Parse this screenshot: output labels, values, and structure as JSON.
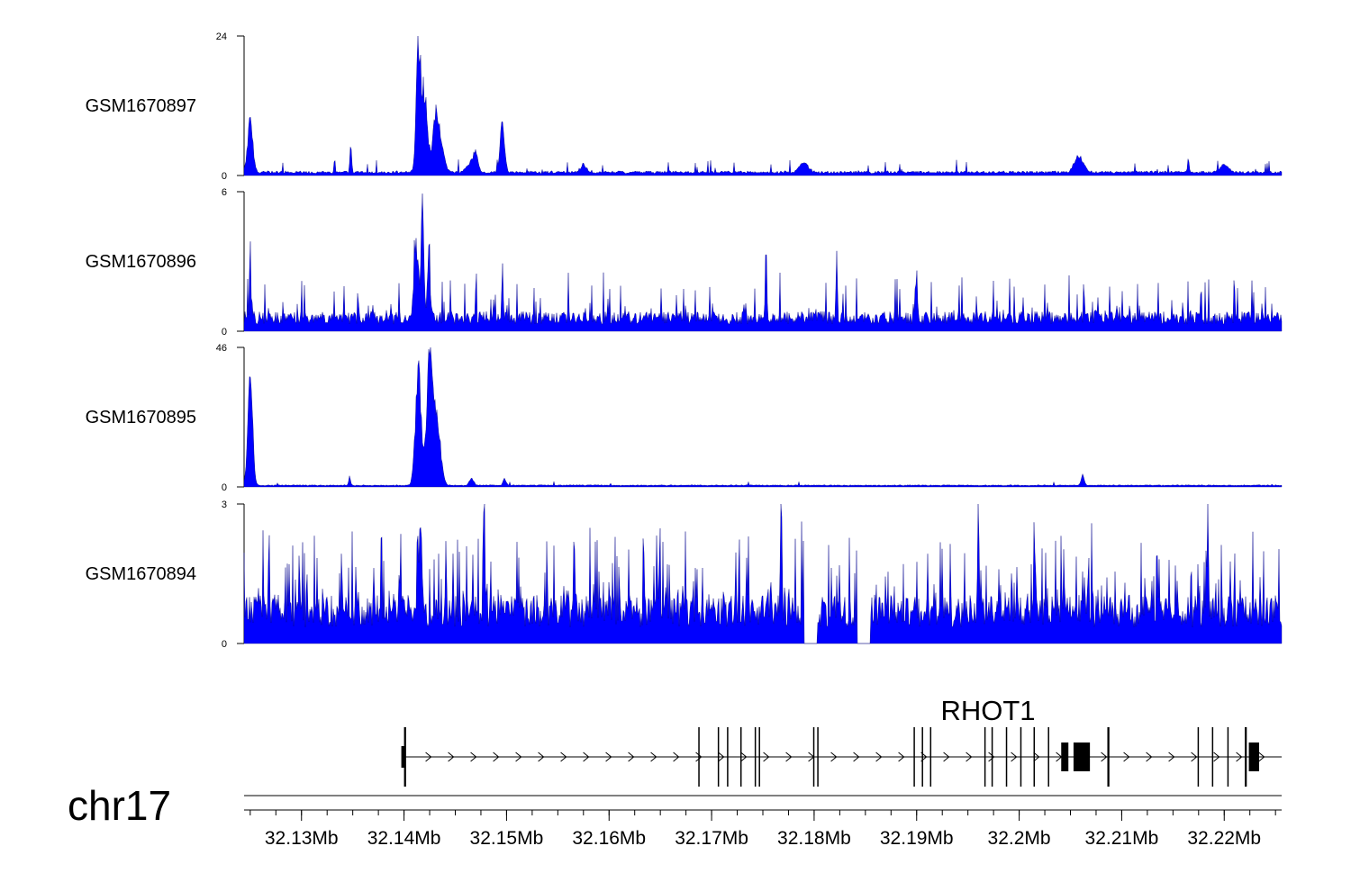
{
  "chart_data": {
    "type": "area",
    "chromosome": "chr17",
    "xlim": [
      32.1244,
      32.2256
    ],
    "colors": {
      "signal": "#0000ff",
      "gene": "#000000"
    },
    "x_ticks": [
      {
        "value": 32.13,
        "label": "32.13Mb"
      },
      {
        "value": 32.14,
        "label": "32.14Mb"
      },
      {
        "value": 32.15,
        "label": "32.15Mb"
      },
      {
        "value": 32.16,
        "label": "32.16Mb"
      },
      {
        "value": 32.17,
        "label": "32.17Mb"
      },
      {
        "value": 32.18,
        "label": "32.18Mb"
      },
      {
        "value": 32.19,
        "label": "32.19Mb"
      },
      {
        "value": 32.2,
        "label": "32.2Mb"
      },
      {
        "value": 32.21,
        "label": "32.21Mb"
      },
      {
        "value": 32.22,
        "label": "32.22Mb"
      }
    ],
    "tracks": [
      {
        "name": "GSM1670897",
        "ylim": [
          0,
          24
        ],
        "ymax_label": "24",
        "ymin_label": "0",
        "background": 0.35,
        "noise": 0.45,
        "spikes": 0.04,
        "spike_height": 2.2,
        "peaks": [
          {
            "x": 32.125,
            "height": 10.5,
            "width": 0.00035
          },
          {
            "x": 32.1348,
            "height": 5.5,
            "width": 0.00012
          },
          {
            "x": 32.1414,
            "height": 24,
            "width": 0.0003
          },
          {
            "x": 32.142,
            "height": 15,
            "width": 0.0004
          },
          {
            "x": 32.1431,
            "height": 10,
            "width": 0.0004
          },
          {
            "x": 32.1436,
            "height": 5,
            "width": 0.0005
          },
          {
            "x": 32.147,
            "height": 3,
            "width": 0.0003
          },
          {
            "x": 32.1496,
            "height": 9.5,
            "width": 0.0003
          },
          {
            "x": 32.1466,
            "height": 2,
            "width": 0.0006
          },
          {
            "x": 32.1575,
            "height": 1.5,
            "width": 0.0004
          },
          {
            "x": 32.179,
            "height": 1.8,
            "width": 0.0006
          },
          {
            "x": 32.2058,
            "height": 3.2,
            "width": 0.0006
          },
          {
            "x": 32.2165,
            "height": 2.8,
            "width": 0.0001
          },
          {
            "x": 32.22,
            "height": 1.5,
            "width": 0.0006
          }
        ]
      },
      {
        "name": "GSM1670896",
        "ylim": [
          0,
          6
        ],
        "ymax_label": "6",
        "ymin_label": "0",
        "background": 0.3,
        "noise": 0.55,
        "spikes": 0.14,
        "spike_height": 1.8,
        "peaks": [
          {
            "x": 32.125,
            "height": 3.9,
            "width": 0.0001
          },
          {
            "x": 32.1418,
            "height": 6,
            "width": 0.00018
          },
          {
            "x": 32.1412,
            "height": 3.5,
            "width": 0.0003
          },
          {
            "x": 32.1424,
            "height": 3.1,
            "width": 0.0002
          },
          {
            "x": 32.1496,
            "height": 2.6,
            "width": 0.0001
          },
          {
            "x": 32.1753,
            "height": 3.8,
            "width": 0.0001
          },
          {
            "x": 32.1822,
            "height": 3.3,
            "width": 0.0001
          },
          {
            "x": 32.19,
            "height": 2.6,
            "width": 0.0001
          }
        ]
      },
      {
        "name": "GSM1670895",
        "ylim": [
          0,
          46
        ],
        "ymax_label": "46",
        "ymin_label": "0",
        "background": 0.4,
        "noise": 0.3,
        "spikes": 0.01,
        "spike_height": 1.5,
        "peaks": [
          {
            "x": 32.125,
            "height": 40,
            "width": 0.00033
          },
          {
            "x": 32.1347,
            "height": 3.5,
            "width": 0.00012
          },
          {
            "x": 32.1414,
            "height": 42,
            "width": 0.0004
          },
          {
            "x": 32.1425,
            "height": 46,
            "width": 0.0004
          },
          {
            "x": 32.1432,
            "height": 24,
            "width": 0.0005
          },
          {
            "x": 32.1466,
            "height": 2.5,
            "width": 0.0003
          },
          {
            "x": 32.1498,
            "height": 2.5,
            "width": 0.0002
          },
          {
            "x": 32.2062,
            "height": 4,
            "width": 0.0002
          }
        ]
      },
      {
        "name": "GSM1670894",
        "ylim": [
          0,
          3
        ],
        "ymax_label": "3",
        "ymin_label": "0",
        "background": 0.35,
        "noise": 0.7,
        "spikes": 0.22,
        "spike_height": 1.6,
        "gaps": [
          [
            32.179,
            32.1803
          ],
          [
            32.1842,
            32.1855
          ]
        ],
        "peaks": [
          {
            "x": 32.1416,
            "height": 2.5,
            "width": 0.0002
          },
          {
            "x": 32.1478,
            "height": 3,
            "width": 0.0001
          },
          {
            "x": 32.1768,
            "height": 3,
            "width": 0.0001
          },
          {
            "x": 32.196,
            "height": 2.9,
            "width": 0.0001
          },
          {
            "x": 32.2184,
            "height": 3,
            "width": 0.0001
          }
        ]
      }
    ],
    "gene": {
      "name": "RHOT1",
      "strand": "+",
      "start": 32.14,
      "end": 32.2256,
      "exons": [
        {
          "start": 32.14,
          "end": 32.1402,
          "thick": false
        },
        {
          "start": 32.1687,
          "end": 32.16875,
          "thick": false
        },
        {
          "start": 32.1706,
          "end": 32.17065,
          "thick": false
        },
        {
          "start": 32.1715,
          "end": 32.17155,
          "thick": false
        },
        {
          "start": 32.1728,
          "end": 32.17285,
          "thick": false
        },
        {
          "start": 32.1742,
          "end": 32.17425,
          "thick": false
        },
        {
          "start": 32.1746,
          "end": 32.17465,
          "thick": false
        },
        {
          "start": 32.1799,
          "end": 32.17995,
          "thick": false
        },
        {
          "start": 32.1803,
          "end": 32.18035,
          "thick": false
        },
        {
          "start": 32.1897,
          "end": 32.18975,
          "thick": false
        },
        {
          "start": 32.1905,
          "end": 32.19055,
          "thick": false
        },
        {
          "start": 32.1913,
          "end": 32.19135,
          "thick": false
        },
        {
          "start": 32.1966,
          "end": 32.19665,
          "thick": false
        },
        {
          "start": 32.1973,
          "end": 32.19735,
          "thick": false
        },
        {
          "start": 32.1987,
          "end": 32.19875,
          "thick": false
        },
        {
          "start": 32.2001,
          "end": 32.20015,
          "thick": false
        },
        {
          "start": 32.2014,
          "end": 32.20145,
          "thick": false
        },
        {
          "start": 32.2028,
          "end": 32.20285,
          "thick": false
        },
        {
          "start": 32.2041,
          "end": 32.2048,
          "thick": true
        },
        {
          "start": 32.2053,
          "end": 32.2069,
          "thick": true
        },
        {
          "start": 32.2086,
          "end": 32.2088,
          "thick": false
        },
        {
          "start": 32.2174,
          "end": 32.21745,
          "thick": false
        },
        {
          "start": 32.2188,
          "end": 32.21885,
          "thick": false
        },
        {
          "start": 32.2203,
          "end": 32.22035,
          "thick": false
        },
        {
          "start": 32.222,
          "end": 32.2222,
          "thick": false
        },
        {
          "start": 32.2224,
          "end": 32.2234,
          "thick": true
        }
      ]
    }
  }
}
